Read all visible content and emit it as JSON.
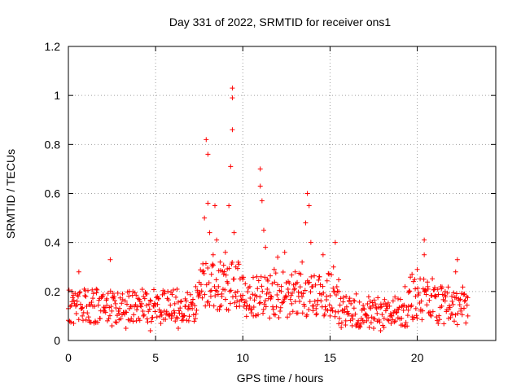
{
  "chart_data": {
    "type": "scatter",
    "title": "Day 331 of 2022, SRMTID for receiver ons1",
    "xlabel": "GPS time / hours",
    "ylabel": "SRMTID / TECUs",
    "xlim": [
      0,
      24.5
    ],
    "ylim": [
      0,
      1.2
    ],
    "xticks": [
      0,
      5,
      10,
      15,
      20
    ],
    "xtick_labels": [
      "0",
      "5",
      "10",
      "15",
      "20"
    ],
    "yticks": [
      0,
      0.2,
      0.4,
      0.6,
      0.8,
      1.0,
      1.2
    ],
    "ytick_labels": [
      "0",
      "0.2",
      "0.4",
      "0.6",
      "0.8",
      "1",
      "1.2"
    ],
    "grid": true,
    "marker": "+",
    "color": "#ff0000",
    "x_range_of_data": [
      0,
      22.9
    ],
    "series": [
      {
        "name": "SRMTID",
        "points": [
          [
            0.0,
            0.13
          ],
          [
            0.2,
            0.2
          ],
          [
            0.3,
            0.07
          ],
          [
            0.5,
            0.16
          ],
          [
            0.6,
            0.28
          ],
          [
            0.8,
            0.1
          ],
          [
            1.0,
            0.18
          ],
          [
            1.2,
            0.08
          ],
          [
            1.4,
            0.14
          ],
          [
            1.6,
            0.21
          ],
          [
            1.8,
            0.09
          ],
          [
            2.0,
            0.12
          ],
          [
            2.2,
            0.17
          ],
          [
            2.4,
            0.33
          ],
          [
            2.5,
            0.06
          ],
          [
            2.7,
            0.15
          ],
          [
            2.9,
            0.11
          ],
          [
            3.1,
            0.19
          ],
          [
            3.3,
            0.05
          ],
          [
            3.5,
            0.13
          ],
          [
            3.7,
            0.2
          ],
          [
            3.9,
            0.08
          ],
          [
            4.1,
            0.16
          ],
          [
            4.3,
            0.1
          ],
          [
            4.5,
            0.19
          ],
          [
            4.7,
            0.04
          ],
          [
            4.9,
            0.14
          ],
          [
            5.1,
            0.18
          ],
          [
            5.3,
            0.07
          ],
          [
            5.5,
            0.12
          ],
          [
            5.7,
            0.2
          ],
          [
            5.9,
            0.09
          ],
          [
            6.1,
            0.15
          ],
          [
            6.3,
            0.05
          ],
          [
            6.5,
            0.11
          ],
          [
            6.7,
            0.17
          ],
          [
            6.9,
            0.08
          ],
          [
            7.1,
            0.13
          ],
          [
            7.3,
            0.22
          ],
          [
            7.5,
            0.19
          ],
          [
            7.7,
            0.28
          ],
          [
            7.8,
            0.5
          ],
          [
            7.9,
            0.82
          ],
          [
            8.0,
            0.76
          ],
          [
            8.0,
            0.56
          ],
          [
            8.1,
            0.44
          ],
          [
            8.2,
            0.27
          ],
          [
            8.3,
            0.35
          ],
          [
            8.4,
            0.55
          ],
          [
            8.5,
            0.41
          ],
          [
            8.6,
            0.22
          ],
          [
            8.7,
            0.32
          ],
          [
            8.8,
            0.18
          ],
          [
            8.9,
            0.27
          ],
          [
            9.0,
            0.36
          ],
          [
            9.1,
            0.24
          ],
          [
            9.2,
            0.55
          ],
          [
            9.3,
            0.71
          ],
          [
            9.4,
            1.03
          ],
          [
            9.4,
            0.99
          ],
          [
            9.4,
            0.86
          ],
          [
            9.5,
            0.44
          ],
          [
            9.6,
            0.3
          ],
          [
            9.7,
            0.2
          ],
          [
            9.8,
            0.16
          ],
          [
            10.0,
            0.25
          ],
          [
            10.2,
            0.13
          ],
          [
            10.4,
            0.22
          ],
          [
            10.6,
            0.1
          ],
          [
            10.8,
            0.18
          ],
          [
            11.0,
            0.7
          ],
          [
            11.0,
            0.63
          ],
          [
            11.1,
            0.57
          ],
          [
            11.2,
            0.45
          ],
          [
            11.3,
            0.38
          ],
          [
            11.4,
            0.25
          ],
          [
            11.6,
            0.17
          ],
          [
            11.8,
            0.29
          ],
          [
            12.0,
            0.34
          ],
          [
            12.2,
            0.2
          ],
          [
            12.4,
            0.36
          ],
          [
            12.6,
            0.24
          ],
          [
            12.8,
            0.15
          ],
          [
            13.0,
            0.28
          ],
          [
            13.2,
            0.18
          ],
          [
            13.4,
            0.32
          ],
          [
            13.6,
            0.48
          ],
          [
            13.7,
            0.6
          ],
          [
            13.8,
            0.55
          ],
          [
            13.9,
            0.4
          ],
          [
            14.0,
            0.22
          ],
          [
            14.2,
            0.13
          ],
          [
            14.4,
            0.26
          ],
          [
            14.6,
            0.35
          ],
          [
            14.8,
            0.18
          ],
          [
            15.0,
            0.1
          ],
          [
            15.2,
            0.3
          ],
          [
            15.3,
            0.4
          ],
          [
            15.5,
            0.2
          ],
          [
            15.7,
            0.12
          ],
          [
            15.9,
            0.08
          ],
          [
            16.1,
            0.16
          ],
          [
            16.3,
            0.1
          ],
          [
            16.5,
            0.19
          ],
          [
            16.7,
            0.06
          ],
          [
            16.9,
            0.13
          ],
          [
            17.1,
            0.08
          ],
          [
            17.3,
            0.16
          ],
          [
            17.5,
            0.05
          ],
          [
            17.7,
            0.11
          ],
          [
            17.9,
            0.04
          ],
          [
            18.1,
            0.09
          ],
          [
            18.3,
            0.14
          ],
          [
            18.5,
            0.07
          ],
          [
            18.7,
            0.12
          ],
          [
            18.9,
            0.17
          ],
          [
            19.1,
            0.09
          ],
          [
            19.3,
            0.22
          ],
          [
            19.5,
            0.14
          ],
          [
            19.7,
            0.27
          ],
          [
            19.9,
            0.18
          ],
          [
            20.0,
            0.29
          ],
          [
            20.2,
            0.12
          ],
          [
            20.4,
            0.35
          ],
          [
            20.4,
            0.41
          ],
          [
            20.6,
            0.22
          ],
          [
            20.8,
            0.1
          ],
          [
            21.0,
            0.18
          ],
          [
            21.2,
            0.07
          ],
          [
            21.4,
            0.14
          ],
          [
            21.6,
            0.2
          ],
          [
            21.8,
            0.09
          ],
          [
            22.0,
            0.16
          ],
          [
            22.2,
            0.28
          ],
          [
            22.3,
            0.33
          ],
          [
            22.5,
            0.12
          ],
          [
            22.7,
            0.19
          ],
          [
            22.9,
            0.1
          ]
        ]
      }
    ],
    "band": {
      "noise_floor_segments": [
        [
          0.0,
          7.5,
          0.07,
          0.21
        ],
        [
          7.5,
          10.0,
          0.12,
          0.32
        ],
        [
          10.0,
          15.5,
          0.09,
          0.28
        ],
        [
          15.5,
          19.5,
          0.05,
          0.18
        ],
        [
          19.5,
          21.0,
          0.08,
          0.26
        ],
        [
          21.0,
          22.9,
          0.06,
          0.22
        ]
      ],
      "step_hours": 0.035
    }
  }
}
